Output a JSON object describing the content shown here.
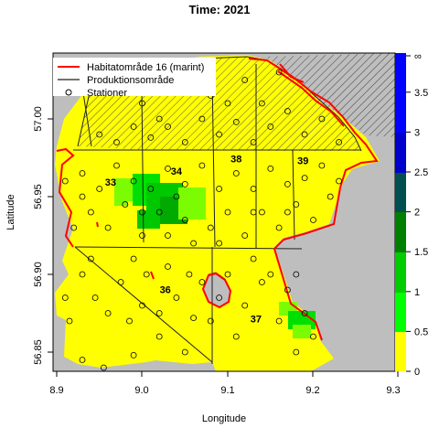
{
  "title": "Time: 2021",
  "xlabel": "Longitude",
  "ylabel": "Latitude",
  "x_ticks": [
    "8.9",
    "9.0",
    "9.1",
    "9.2",
    "9.3"
  ],
  "y_ticks": [
    "56.85",
    "56.90",
    "56.95",
    "57.00"
  ],
  "legend": [
    {
      "label": "Habitatområde 16 (marint)",
      "kind": "line",
      "color": "#ff0000"
    },
    {
      "label": "Produktionsområde",
      "kind": "line",
      "color": "#444444"
    },
    {
      "label": "Stationer",
      "kind": "circle",
      "color": "#000000"
    }
  ],
  "colorbar": {
    "ticks": [
      "0",
      "0.5",
      "1",
      "1.5",
      "2",
      "2.5",
      "3",
      "3.5",
      "∞"
    ],
    "colors": [
      "#ffff00",
      "#00ff00",
      "#00cc00",
      "#008000",
      "#006400",
      "#005050",
      "#0000cc",
      "#0000ff",
      "#0000ff"
    ]
  },
  "area_labels": [
    {
      "text": "33",
      "lon": 8.963,
      "lat": 56.957
    },
    {
      "text": "34",
      "lon": 9.04,
      "lat": 56.964
    },
    {
      "text": "38",
      "lon": 9.11,
      "lat": 56.972
    },
    {
      "text": "39",
      "lon": 9.188,
      "lat": 56.971
    },
    {
      "text": "36",
      "lon": 9.027,
      "lat": 56.888
    },
    {
      "text": "37",
      "lon": 9.133,
      "lat": 56.869
    }
  ],
  "colors": {
    "land": "#bebebe",
    "water": "#ffff00",
    "habitat_line": "#ff0000",
    "prod_line": "#444444",
    "density_low": "#7cfc00",
    "density_high": "#00c800"
  },
  "stations": [
    [
      8.93,
      56.845
    ],
    [
      8.955,
      56.84
    ],
    [
      8.99,
      56.848
    ],
    [
      9.02,
      56.86
    ],
    [
      9.05,
      56.85
    ],
    [
      9.06,
      56.872
    ],
    [
      8.915,
      56.87
    ],
    [
      8.93,
      56.9
    ],
    [
      8.91,
      56.885
    ],
    [
      8.945,
      56.885
    ],
    [
      8.96,
      56.875
    ],
    [
      8.985,
      56.87
    ],
    [
      9.0,
      56.88
    ],
    [
      9.02,
      56.875
    ],
    [
      9.04,
      56.885
    ],
    [
      9.055,
      56.9
    ],
    [
      9.07,
      56.895
    ],
    [
      9.005,
      56.9
    ],
    [
      8.975,
      56.895
    ],
    [
      8.99,
      56.91
    ],
    [
      8.94,
      56.91
    ],
    [
      9.03,
      56.905
    ],
    [
      9.08,
      56.87
    ],
    [
      9.09,
      56.885
    ],
    [
      9.1,
      56.9
    ],
    [
      9.12,
      56.88
    ],
    [
      9.14,
      56.895
    ],
    [
      9.16,
      56.87
    ],
    [
      9.18,
      56.85
    ],
    [
      9.19,
      56.875
    ],
    [
      9.2,
      56.86
    ],
    [
      9.17,
      56.89
    ],
    [
      9.11,
      56.86
    ],
    [
      9.15,
      56.9
    ],
    [
      9.18,
      56.9
    ],
    [
      9.13,
      56.91
    ],
    [
      8.92,
      56.93
    ],
    [
      8.94,
      56.94
    ],
    [
      8.96,
      56.93
    ],
    [
      8.98,
      56.945
    ],
    [
      9.0,
      56.925
    ],
    [
      9.02,
      56.94
    ],
    [
      9.03,
      56.925
    ],
    [
      9.05,
      56.935
    ],
    [
      9.06,
      56.92
    ],
    [
      9.08,
      56.93
    ],
    [
      9.1,
      56.94
    ],
    [
      9.12,
      56.925
    ],
    [
      9.14,
      56.94
    ],
    [
      9.16,
      56.93
    ],
    [
      9.18,
      56.945
    ],
    [
      9.2,
      56.935
    ],
    [
      9.22,
      56.95
    ],
    [
      8.91,
      56.96
    ],
    [
      8.93,
      56.965
    ],
    [
      8.95,
      56.955
    ],
    [
      8.97,
      56.97
    ],
    [
      8.99,
      56.96
    ],
    [
      9.01,
      56.955
    ],
    [
      9.03,
      56.968
    ],
    [
      9.05,
      56.958
    ],
    [
      9.07,
      56.97
    ],
    [
      9.09,
      56.955
    ],
    [
      9.11,
      56.965
    ],
    [
      9.13,
      56.955
    ],
    [
      9.15,
      56.968
    ],
    [
      9.17,
      56.958
    ],
    [
      9.19,
      56.962
    ],
    [
      9.21,
      56.97
    ],
    [
      9.23,
      56.96
    ],
    [
      8.95,
      56.99
    ],
    [
      8.97,
      56.985
    ],
    [
      8.99,
      56.995
    ],
    [
      9.01,
      56.988
    ],
    [
      9.03,
      56.995
    ],
    [
      9.05,
      56.985
    ],
    [
      9.07,
      57.0
    ],
    [
      9.09,
      56.99
    ],
    [
      9.11,
      56.998
    ],
    [
      9.13,
      56.985
    ],
    [
      9.15,
      56.995
    ],
    [
      9.17,
      57.005
    ],
    [
      9.19,
      56.99
    ],
    [
      9.21,
      57.0
    ],
    [
      9.23,
      56.985
    ],
    [
      9.0,
      57.01
    ],
    [
      9.04,
      57.02
    ],
    [
      9.08,
      57.015
    ],
    [
      9.12,
      57.025
    ],
    [
      9.16,
      57.03
    ],
    [
      9.1,
      57.01
    ],
    [
      9.06,
      57.03
    ],
    [
      9.02,
      57.0
    ],
    [
      9.14,
      57.01
    ],
    [
      8.93,
      56.95
    ],
    [
      9.0,
      56.94
    ],
    [
      9.04,
      56.95
    ],
    [
      9.09,
      56.92
    ],
    [
      9.13,
      56.94
    ],
    [
      9.17,
      56.94
    ]
  ]
}
